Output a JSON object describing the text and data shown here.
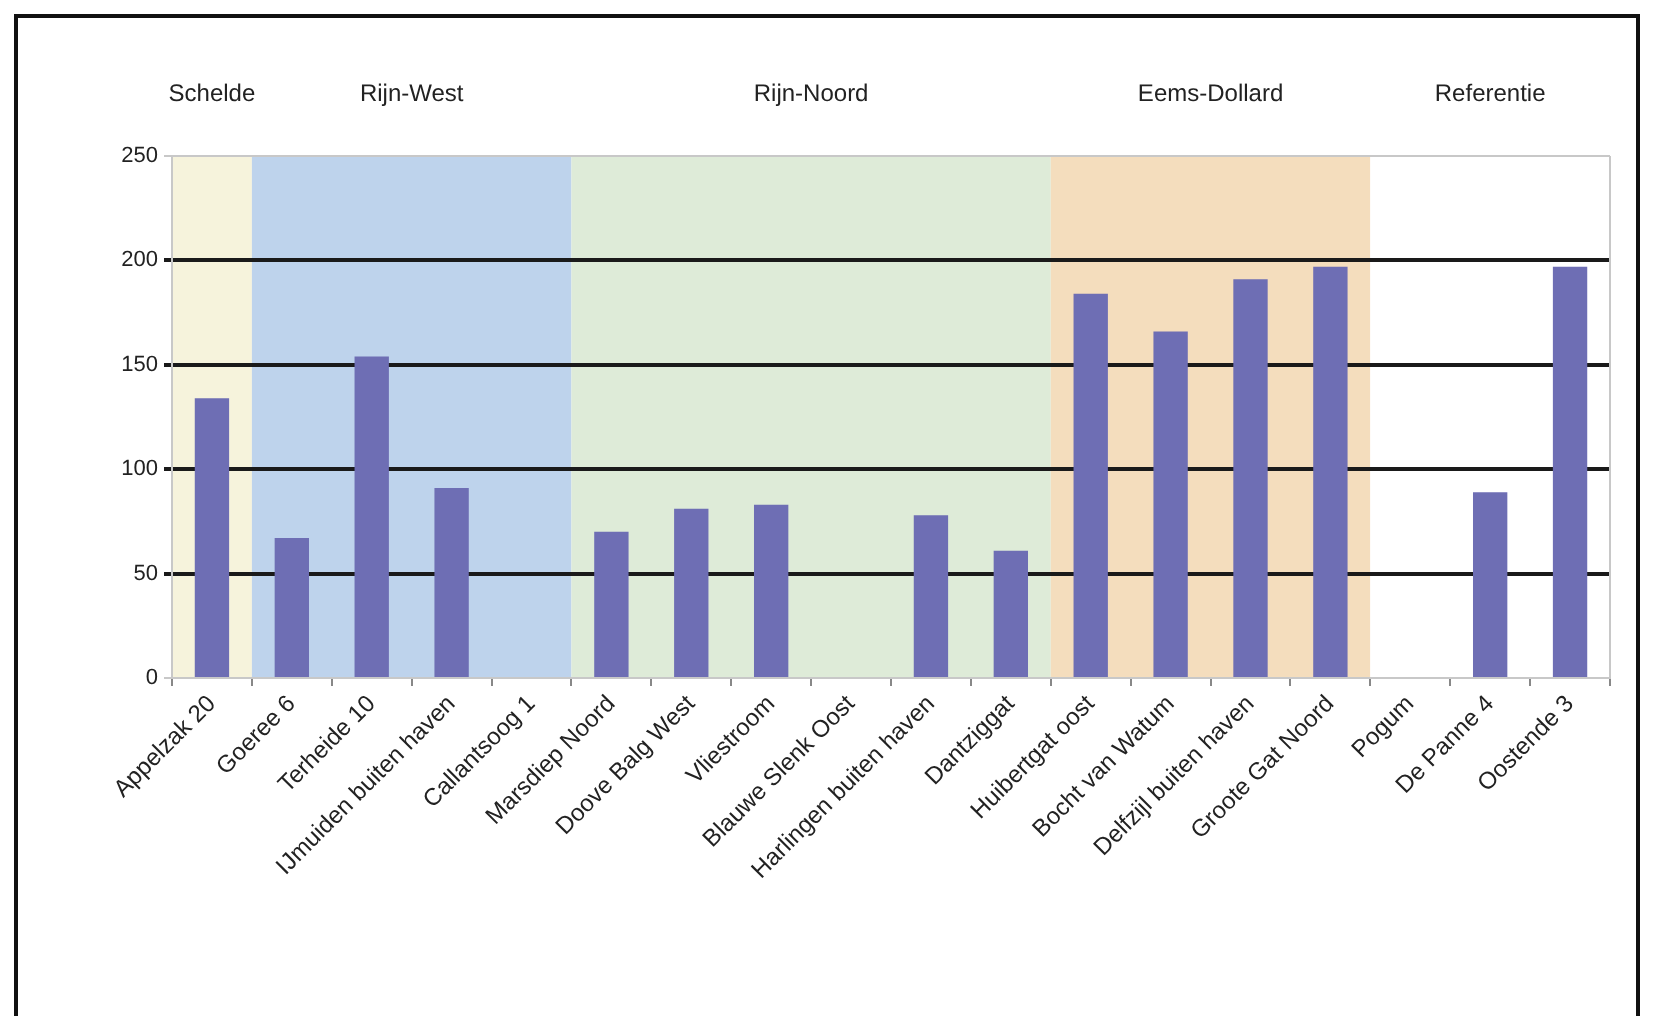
{
  "chart_data": {
    "type": "bar",
    "categories": [
      "Appelzak 20",
      "Goeree 6",
      "Terheide 10",
      "IJmuiden buiten haven",
      "Callantsoog 1",
      "Marsdiep Noord",
      "Doove Balg West",
      "Vliestroom",
      "Blauwe Slenk Oost",
      "Harlingen buiten haven",
      "Dantziggat",
      "Huibertgat oost",
      "Bocht van Watum",
      "Delfzijl buiten haven",
      "Groote Gat Noord",
      "Pogum",
      "De Panne 4",
      "Oostende 3"
    ],
    "values": [
      134,
      67,
      154,
      91,
      null,
      70,
      81,
      83,
      null,
      78,
      61,
      184,
      166,
      191,
      197,
      null,
      89,
      197
    ],
    "color": "#6e6eb4",
    "ylim": [
      0,
      250
    ],
    "yticks": [
      0,
      50,
      100,
      150,
      200,
      250
    ],
    "grid": "y",
    "bands": [
      {
        "axis": "x",
        "from": "Appelzak 20",
        "to": "Appelzak 20",
        "label": "Schelde",
        "color": "#f6f3dc"
      },
      {
        "axis": "x",
        "from": "Goeree 6",
        "to": "Callantsoog 1",
        "label": "Rijn-West",
        "color": "#bed3ec"
      },
      {
        "axis": "x",
        "from": "Marsdiep Noord",
        "to": "Dantziggat",
        "label": "Rijn-Noord",
        "color": "#deebd8"
      },
      {
        "axis": "x",
        "from": "Huibertgat oost",
        "to": "Groote Gat Noord",
        "label": "Eems-Dollard",
        "color": "#f4ddbd"
      },
      {
        "axis": "x",
        "from": "Pogum",
        "to": "Oostende 3",
        "label": "Referentie",
        "color": "#ffffff"
      }
    ]
  }
}
